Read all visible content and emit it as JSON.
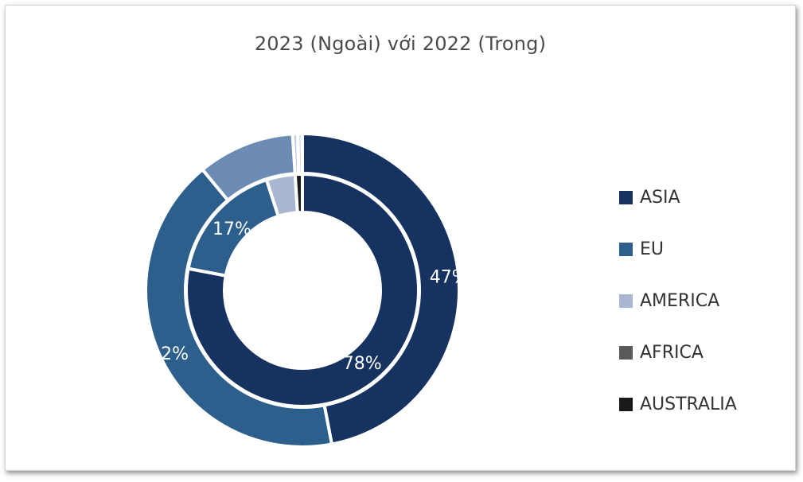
{
  "chart_data": {
    "type": "donut",
    "title": "2023 (Ngoài) với 2022 (Trong)",
    "categories": [
      "ASIA",
      "EU",
      "AMERICA",
      "AFRICA",
      "AUSTRALIA"
    ],
    "colors": [
      "#163260",
      "#2d5f8d",
      "#a9b8d0",
      "#595959",
      "#1a1a1a"
    ],
    "series": [
      {
        "values": [
          47,
          42,
          10,
          0.5,
          0.5
        ],
        "colors": [
          "#163260",
          "#2d5f8d",
          "#6d8cb3",
          "#bfc9d9",
          "#dfe4ec"
        ],
        "data_labels": [
          "47%",
          "42%",
          "",
          "",
          ""
        ]
      },
      {
        "values": [
          78,
          17,
          4,
          0,
          1
        ],
        "colors": [
          "#163260",
          "#2d5f8d",
          "#a9b8d0",
          "#595959",
          "#1a1a1a"
        ],
        "data_labels": [
          "78%",
          "17%",
          "",
          "",
          ""
        ]
      }
    ],
    "legend_position": "right",
    "grid": false
  }
}
